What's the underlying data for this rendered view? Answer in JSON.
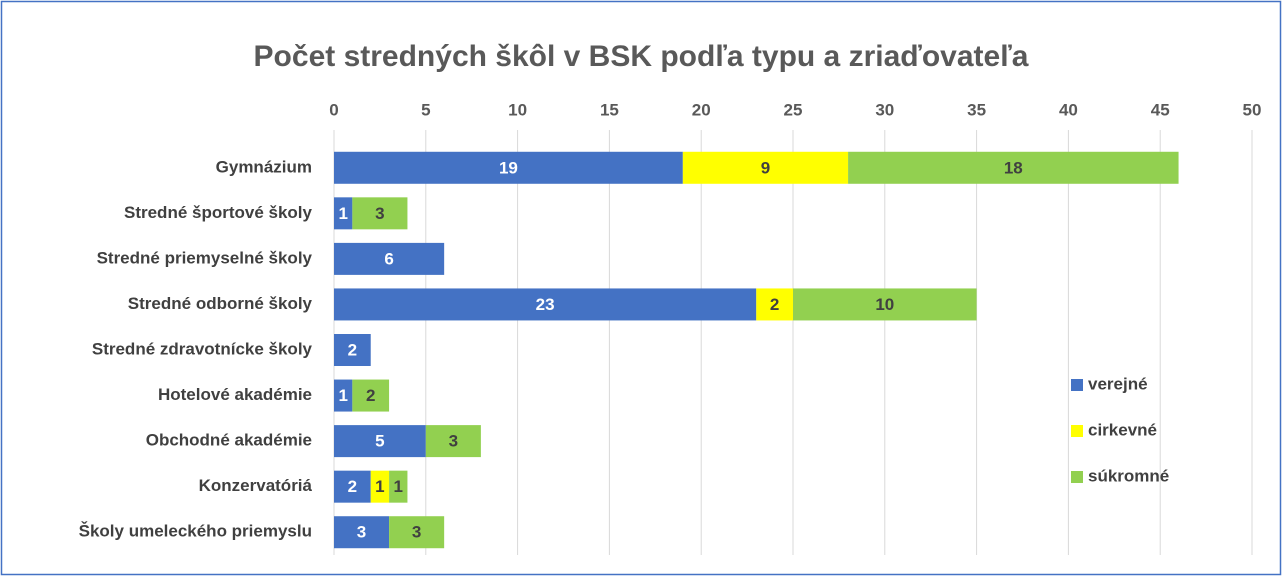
{
  "chart_data": {
    "type": "stacked-barh",
    "title": "Počet stredných škôl v BSK podľa typu a zriaďovateľa",
    "categories": [
      "Gymnázium",
      "Stredné športové školy",
      "Stredné priemyselné školy",
      "Stredné odborné školy",
      "Stredné zdravotnícke školy",
      "Hotelové akadémie",
      "Obchodné akadémie",
      "Konzervatóriá",
      "Školy umeleckého priemyslu"
    ],
    "series": [
      {
        "name": "verejné",
        "color": "#4472c4",
        "label_color": "#ffffff",
        "values": [
          19,
          1,
          6,
          23,
          2,
          1,
          5,
          2,
          3
        ]
      },
      {
        "name": "cirkevné",
        "color": "#ffff00",
        "label_color": "#404040",
        "values": [
          9,
          null,
          null,
          2,
          null,
          null,
          null,
          1,
          null
        ]
      },
      {
        "name": "súkromné",
        "color": "#92d050",
        "label_color": "#404040",
        "values": [
          18,
          3,
          null,
          10,
          null,
          2,
          3,
          1,
          3
        ]
      }
    ],
    "xlim": [
      0,
      50
    ],
    "xticks": [
      0,
      5,
      10,
      15,
      20,
      25,
      30,
      35,
      40,
      45,
      50
    ],
    "grid": true,
    "legend": "right"
  }
}
